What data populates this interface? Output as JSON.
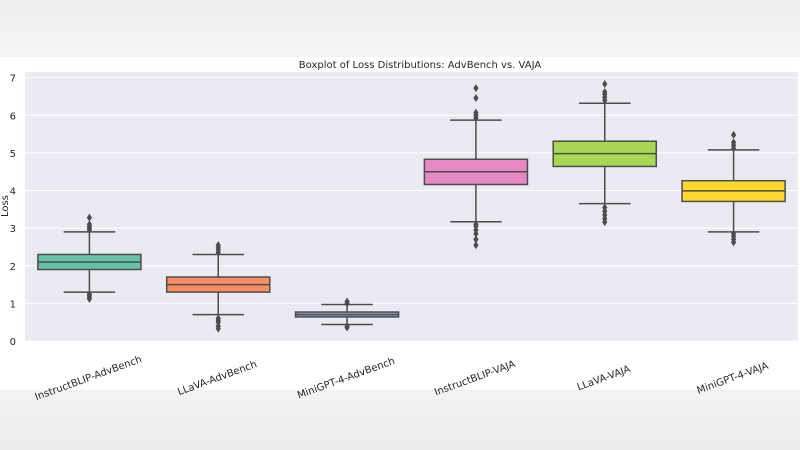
{
  "chart_data": {
    "type": "boxplot",
    "title": "Boxplot of Loss Distributions: AdvBench vs. VAJA",
    "xlabel": "",
    "ylabel": "Loss",
    "ylim": [
      0,
      7.15
    ],
    "yticks": [
      0,
      1,
      2,
      3,
      4,
      5,
      6,
      7
    ],
    "grid": true,
    "background": "#eaeaf2",
    "categories": [
      "InstructBLIP-AdvBench",
      "LLaVA-AdvBench",
      "MiniGPT-4-AdvBench",
      "InstructBLIP-VAJA",
      "LLaVA-VAJA",
      "MiniGPT-4-VAJA"
    ],
    "boxes": [
      {
        "color": "#66c2a5",
        "whisker_low": 1.3,
        "q1": 1.9,
        "median": 2.1,
        "q3": 2.3,
        "whisker_high": 2.9,
        "outliers": [
          1.12,
          1.17,
          1.22,
          1.25,
          2.95,
          3.0,
          3.05,
          3.1,
          3.28
        ]
      },
      {
        "color": "#fc8d62",
        "whisker_low": 0.7,
        "q1": 1.3,
        "median": 1.5,
        "q3": 1.7,
        "whisker_high": 2.3,
        "outliers": [
          0.33,
          0.4,
          0.5,
          0.55,
          0.6,
          2.35,
          2.42,
          2.48,
          2.55
        ]
      },
      {
        "color": "#8da0cb",
        "whisker_low": 0.44,
        "q1": 0.64,
        "median": 0.7,
        "q3": 0.77,
        "whisker_high": 0.97,
        "outliers": [
          0.36,
          0.4,
          1.0,
          1.05
        ]
      },
      {
        "color": "#e78ac3",
        "whisker_low": 3.17,
        "q1": 4.16,
        "median": 4.5,
        "q3": 4.83,
        "whisker_high": 5.87,
        "outliers": [
          2.55,
          2.7,
          2.85,
          2.95,
          3.05,
          3.1,
          5.93,
          6.0,
          6.07,
          6.46,
          6.72
        ]
      },
      {
        "color": "#a6d854",
        "whisker_low": 3.65,
        "q1": 4.64,
        "median": 4.98,
        "q3": 5.31,
        "whisker_high": 6.32,
        "outliers": [
          3.16,
          3.25,
          3.35,
          3.45,
          3.55,
          6.4,
          6.48,
          6.56,
          6.62,
          6.83
        ]
      },
      {
        "color": "#ffd92f",
        "whisker_low": 2.9,
        "q1": 3.71,
        "median": 3.99,
        "q3": 4.26,
        "whisker_high": 5.08,
        "outliers": [
          2.62,
          2.7,
          2.78,
          2.85,
          5.12,
          5.2,
          5.28,
          5.48
        ]
      }
    ]
  }
}
